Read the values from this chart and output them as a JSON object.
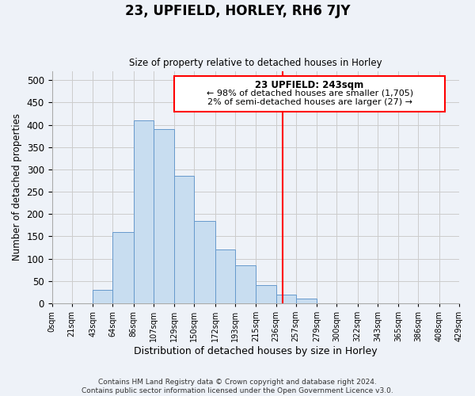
{
  "title": "23, UPFIELD, HORLEY, RH6 7JY",
  "subtitle": "Size of property relative to detached houses in Horley",
  "xlabel": "Distribution of detached houses by size in Horley",
  "ylabel": "Number of detached properties",
  "footnote1": "Contains HM Land Registry data © Crown copyright and database right 2024.",
  "footnote2": "Contains public sector information licensed under the Open Government Licence v3.0.",
  "bin_edges": [
    0,
    21,
    43,
    64,
    86,
    107,
    129,
    150,
    172,
    193,
    215,
    236,
    257,
    279,
    300,
    322,
    343,
    365,
    386,
    408,
    429
  ],
  "bar_heights": [
    0,
    0,
    30,
    160,
    410,
    390,
    285,
    185,
    120,
    85,
    40,
    20,
    10,
    0,
    0,
    0,
    0,
    0,
    0,
    0
  ],
  "bar_color": "#c8ddf0",
  "bar_edgecolor": "#6699cc",
  "red_line_x": 243,
  "ylim": [
    0,
    520
  ],
  "xlim": [
    0,
    429
  ],
  "yticks": [
    0,
    50,
    100,
    150,
    200,
    250,
    300,
    350,
    400,
    450,
    500
  ],
  "annotation_title": "23 UPFIELD: 243sqm",
  "annotation_line1": "← 98% of detached houses are smaller (1,705)",
  "annotation_line2": "2% of semi-detached houses are larger (27) →",
  "grid_color": "#cccccc",
  "background_color": "#eef2f8",
  "spine_color": "#aaaaaa"
}
